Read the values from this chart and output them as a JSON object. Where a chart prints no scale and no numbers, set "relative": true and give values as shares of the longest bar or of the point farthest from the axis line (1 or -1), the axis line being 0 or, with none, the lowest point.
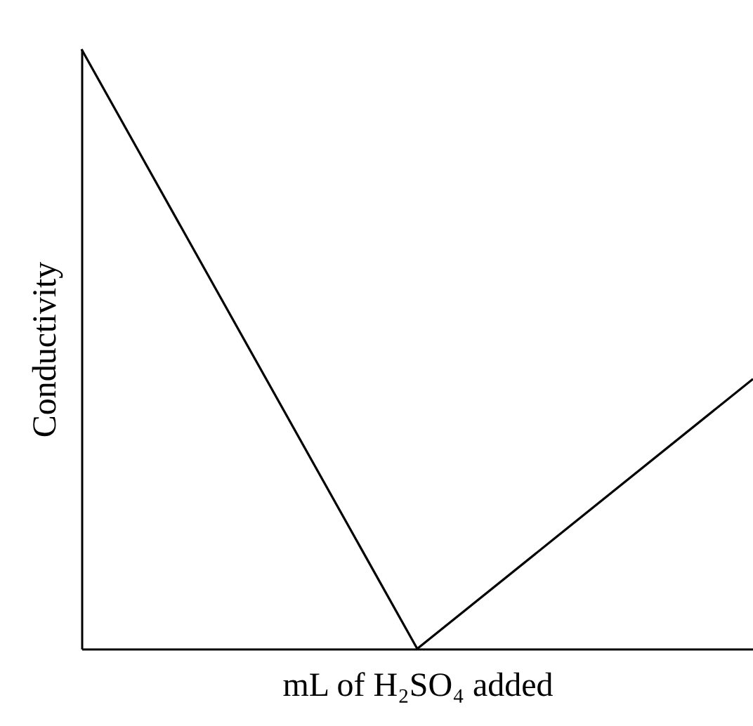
{
  "chart_data": {
    "type": "line",
    "relative": true,
    "xlabel": "mL of H₂SO₄ added",
    "ylabel": "Conductivity",
    "categories": [
      null,
      null,
      null
    ],
    "series": [
      {
        "color": "#000000",
        "values": [
          1,
          0,
          0.45
        ]
      }
    ],
    "marker": "none",
    "grid": false,
    "tick_labels": false
  }
}
